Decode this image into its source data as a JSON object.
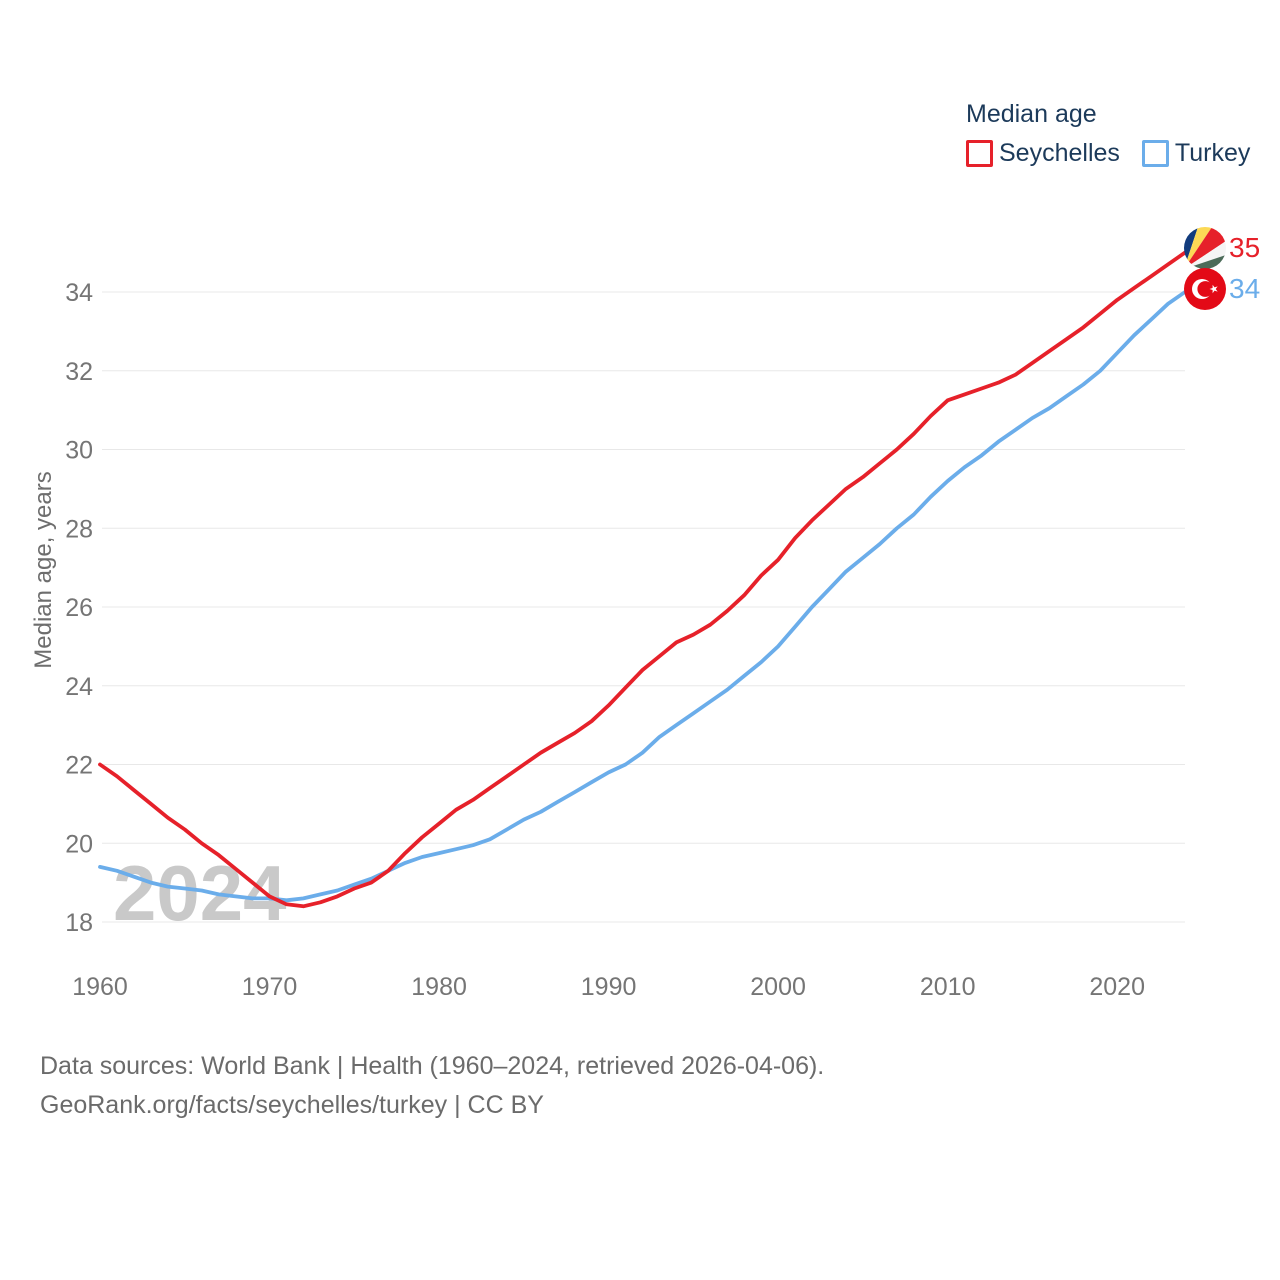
{
  "legend": {
    "title": "Median age",
    "series": [
      {
        "label": "Seychelles",
        "color": "#e6212a"
      },
      {
        "label": "Turkey",
        "color": "#6badea"
      }
    ]
  },
  "y_axis": {
    "title": "Median age, years",
    "ticks": [
      18,
      20,
      22,
      24,
      26,
      28,
      30,
      32,
      34
    ]
  },
  "x_axis": {
    "ticks": [
      1960,
      1970,
      1980,
      1990,
      2000,
      2010,
      2020
    ]
  },
  "end_labels": [
    {
      "series": "Seychelles",
      "value": "35",
      "flag": "seychelles-flag"
    },
    {
      "series": "Turkey",
      "value": "34",
      "flag": "turkey-flag"
    }
  ],
  "watermark": "2024",
  "footer": {
    "line1": "Data sources: World Bank | Health (1960–2024, retrieved 2026-04-06).",
    "line2": "GeoRank.org/facts/seychelles/turkey | CC BY"
  },
  "chart_data": {
    "type": "line",
    "title": "Median age",
    "xlabel": "",
    "ylabel": "Median age, years",
    "xlim": [
      1960,
      2024
    ],
    "ylim": [
      18,
      34
    ],
    "grid": true,
    "legend_position": "top-right",
    "x": [
      1960,
      1961,
      1962,
      1963,
      1964,
      1965,
      1966,
      1967,
      1968,
      1969,
      1970,
      1971,
      1972,
      1973,
      1974,
      1975,
      1976,
      1977,
      1978,
      1979,
      1980,
      1981,
      1982,
      1983,
      1984,
      1985,
      1986,
      1987,
      1988,
      1989,
      1990,
      1991,
      1992,
      1993,
      1994,
      1995,
      1996,
      1997,
      1998,
      1999,
      2000,
      2001,
      2002,
      2003,
      2004,
      2005,
      2006,
      2007,
      2008,
      2009,
      2010,
      2011,
      2012,
      2013,
      2014,
      2015,
      2016,
      2017,
      2018,
      2019,
      2020,
      2021,
      2022,
      2023,
      2024
    ],
    "series": [
      {
        "name": "Seychelles",
        "color": "#e6212a",
        "end_value": 35,
        "values": [
          22.0,
          21.7,
          21.35,
          21.0,
          20.65,
          20.35,
          20.0,
          19.7,
          19.35,
          19.0,
          18.65,
          18.45,
          18.4,
          18.5,
          18.65,
          18.85,
          19.0,
          19.3,
          19.75,
          20.15,
          20.5,
          20.85,
          21.1,
          21.4,
          21.7,
          22.0,
          22.3,
          22.55,
          22.8,
          23.1,
          23.5,
          23.95,
          24.4,
          24.75,
          25.1,
          25.3,
          25.55,
          25.9,
          26.3,
          26.8,
          27.2,
          27.75,
          28.2,
          28.6,
          29.0,
          29.3,
          29.65,
          30.0,
          30.4,
          30.85,
          31.25,
          31.4,
          31.55,
          31.7,
          31.9,
          32.2,
          32.5,
          32.8,
          33.1,
          33.45,
          33.8,
          34.1,
          34.4,
          34.7,
          35.0
        ]
      },
      {
        "name": "Turkey",
        "color": "#6badea",
        "end_value": 34,
        "values": [
          19.4,
          19.3,
          19.15,
          19.0,
          18.9,
          18.85,
          18.8,
          18.7,
          18.65,
          18.6,
          18.6,
          18.55,
          18.6,
          18.7,
          18.8,
          18.95,
          19.1,
          19.3,
          19.5,
          19.65,
          19.75,
          19.85,
          19.95,
          20.1,
          20.35,
          20.6,
          20.8,
          21.05,
          21.3,
          21.55,
          21.8,
          22.0,
          22.3,
          22.7,
          23.0,
          23.3,
          23.6,
          23.9,
          24.25,
          24.6,
          25.0,
          25.5,
          26.0,
          26.45,
          26.9,
          27.25,
          27.6,
          28.0,
          28.35,
          28.8,
          29.2,
          29.55,
          29.85,
          30.2,
          30.5,
          30.8,
          31.05,
          31.35,
          31.65,
          32.0,
          32.45,
          32.9,
          33.3,
          33.7,
          34.0
        ]
      }
    ]
  }
}
